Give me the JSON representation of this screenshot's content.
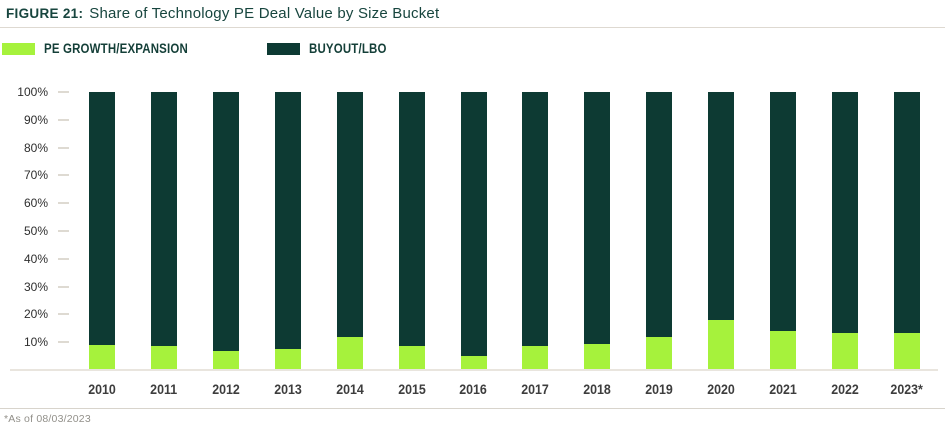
{
  "header": {
    "figure_label": "FIGURE 21:",
    "title": "Share of Technology PE Deal Value by Size Bucket"
  },
  "legend": [
    {
      "label": "PE GROWTH/EXPANSION",
      "color": "#a6f23c"
    },
    {
      "label": "BUYOUT/LBO",
      "color": "#0d3a33"
    }
  ],
  "footnote": "*As of 08/03/2023",
  "colors": {
    "pe_growth_green": "#a6f23c",
    "buyout_teal": "#0d3a33",
    "title_teal": "#17453e",
    "axis_text": "#2e2e2e",
    "baseline": "#e9e5de"
  },
  "chart_data": {
    "type": "bar",
    "stacked": true,
    "title": "Share of Technology PE Deal Value by Size Bucket",
    "xlabel": "",
    "ylabel": "",
    "ylim": [
      0,
      100
    ],
    "grid": false,
    "legend_position": "top-left",
    "y_tick_labels": [
      "100%",
      "90%",
      "80%",
      "70%",
      "60%",
      "50%",
      "40%",
      "30%",
      "20%",
      "10%"
    ],
    "y_tick_values": [
      100,
      90,
      80,
      70,
      60,
      50,
      40,
      30,
      20,
      10
    ],
    "categories": [
      "2010",
      "2011",
      "2012",
      "2013",
      "2014",
      "2015",
      "2016",
      "2017",
      "2018",
      "2019",
      "2020",
      "2021",
      "2022",
      "2023*"
    ],
    "series": [
      {
        "name": "PE Growth/Expansion",
        "color": "#a6f23c",
        "values": [
          9,
          8.5,
          7,
          7.5,
          12,
          8.5,
          5,
          8.5,
          9.5,
          12,
          18,
          14,
          13.5,
          13.5
        ]
      },
      {
        "name": "Buyout/LBO",
        "color": "#0d3a33",
        "values": [
          91,
          91.5,
          93,
          92.5,
          88,
          91.5,
          95,
          91.5,
          90.5,
          88,
          82,
          86,
          86.5,
          86.5
        ]
      }
    ]
  }
}
